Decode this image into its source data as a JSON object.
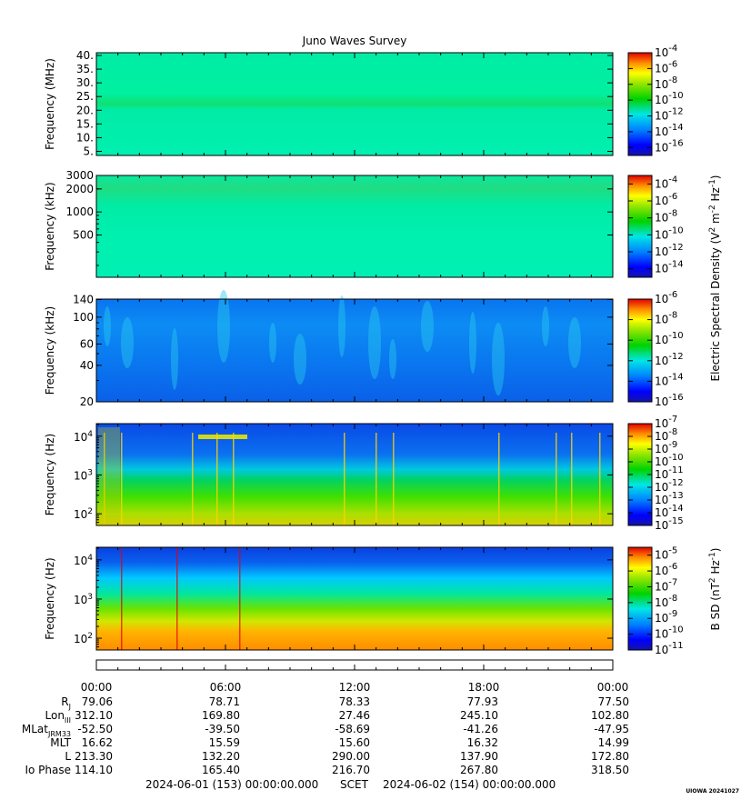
{
  "chart_data": {
    "type": "heatmap",
    "title": "Juno Waves Survey",
    "panels": [
      {
        "id": "p1",
        "ylabel": "Frequency (MHz)",
        "yscale": "linear",
        "ylim": [
          3.5,
          41
        ],
        "yticks": [
          {
            "v": 5,
            "t": "5."
          },
          {
            "v": 10,
            "t": "10."
          },
          {
            "v": 15,
            "t": "15."
          },
          {
            "v": 20,
            "t": "20."
          },
          {
            "v": 25,
            "t": "25."
          },
          {
            "v": 30,
            "t": "30."
          },
          {
            "v": 35,
            "t": "35."
          },
          {
            "v": 40,
            "t": "40."
          }
        ],
        "colorbar": {
          "range": [
            -17,
            -4
          ],
          "ticks": [
            {
              "b": "10",
              "e": "-4",
              "v": -4
            },
            {
              "b": "10",
              "e": "-6",
              "v": -6
            },
            {
              "b": "10",
              "e": "-8",
              "v": -8
            },
            {
              "b": "10",
              "e": "-10",
              "v": -10
            },
            {
              "b": "10",
              "e": "-12",
              "v": -12
            },
            {
              "b": "10",
              "e": "-14",
              "v": -14
            },
            {
              "b": "10",
              "e": "-16",
              "v": -16
            }
          ]
        }
      },
      {
        "id": "p2",
        "ylabel": "Frequency (kHz)",
        "yscale": "log",
        "ylim": [
          140,
          3000
        ],
        "yticks": [
          {
            "v": 3000,
            "t": "3000"
          },
          {
            "v": 2000,
            "t": "2000"
          },
          {
            "v": 1000,
            "t": "1000"
          },
          {
            "v": 500,
            "t": "500"
          }
        ],
        "colorbar": {
          "range": [
            -15,
            -3
          ],
          "ticks": [
            {
              "b": "10",
              "e": "-4",
              "v": -4
            },
            {
              "b": "10",
              "e": "-6",
              "v": -6
            },
            {
              "b": "10",
              "e": "-8",
              "v": -8
            },
            {
              "b": "10",
              "e": "-10",
              "v": -10
            },
            {
              "b": "10",
              "e": "-12",
              "v": -12
            },
            {
              "b": "10",
              "e": "-14",
              "v": -14
            }
          ]
        }
      },
      {
        "id": "p3",
        "ylabel": "Frequency (kHz)",
        "yscale": "log",
        "ylim": [
          20,
          141
        ],
        "yticks": [
          {
            "v": 140,
            "t": "140"
          },
          {
            "v": 100,
            "t": "100"
          },
          {
            "v": 60,
            "t": "60"
          },
          {
            "v": 40,
            "t": "40"
          },
          {
            "v": 20,
            "t": "20"
          }
        ],
        "colorbar": {
          "range": [
            -16,
            -6
          ],
          "ticks": [
            {
              "b": "10",
              "e": "-6",
              "v": -6
            },
            {
              "b": "10",
              "e": "-8",
              "v": -8
            },
            {
              "b": "10",
              "e": "-10",
              "v": -10
            },
            {
              "b": "10",
              "e": "-12",
              "v": -12
            },
            {
              "b": "10",
              "e": "-14",
              "v": -14
            },
            {
              "b": "10",
              "e": "-16",
              "v": -16
            }
          ]
        }
      },
      {
        "id": "p4",
        "ylabel": "Frequency (Hz)",
        "yscale": "log",
        "ylim": [
          50,
          21000
        ],
        "yticks": [
          {
            "v": 10000,
            "b": "10",
            "e": "4"
          },
          {
            "v": 1000,
            "b": "10",
            "e": "3"
          },
          {
            "v": 100,
            "b": "10",
            "e": "2"
          }
        ],
        "colorbar": {
          "range": [
            -15,
            -7
          ],
          "ticks": [
            {
              "b": "10",
              "e": "-7",
              "v": -7
            },
            {
              "b": "10",
              "e": "-8",
              "v": -8
            },
            {
              "b": "10",
              "e": "-9",
              "v": -9
            },
            {
              "b": "10",
              "e": "-10",
              "v": -10
            },
            {
              "b": "10",
              "e": "-11",
              "v": -11
            },
            {
              "b": "10",
              "e": "-12",
              "v": -12
            },
            {
              "b": "10",
              "e": "-13",
              "v": -13
            },
            {
              "b": "10",
              "e": "-14",
              "v": -14
            },
            {
              "b": "10",
              "e": "-15",
              "v": -15
            }
          ]
        }
      },
      {
        "id": "p5",
        "ylabel": "Frequency (Hz)",
        "yscale": "log",
        "ylim": [
          50,
          21000
        ],
        "yticks": [
          {
            "v": 10000,
            "b": "10",
            "e": "4"
          },
          {
            "v": 1000,
            "b": "10",
            "e": "3"
          },
          {
            "v": 100,
            "b": "10",
            "e": "2"
          }
        ],
        "colorbar": {
          "range": [
            -11,
            -4.5
          ],
          "ticks": [
            {
              "b": "10",
              "e": "-5",
              "v": -5
            },
            {
              "b": "10",
              "e": "-6",
              "v": -6
            },
            {
              "b": "10",
              "e": "-7",
              "v": -7
            },
            {
              "b": "10",
              "e": "-8",
              "v": -8
            },
            {
              "b": "10",
              "e": "-9",
              "v": -9
            },
            {
              "b": "10",
              "e": "-10",
              "v": -10
            },
            {
              "b": "10",
              "e": "-11",
              "v": -11
            }
          ]
        }
      }
    ],
    "colorbar_labels": {
      "electric": "Electric Spectral Density (V",
      "electric_parts": [
        {
          "t": "Electric Spectral Density (V",
          "sup": false
        },
        {
          "t": "2",
          "sup": true
        },
        {
          "t": " m",
          "sup": false
        },
        {
          "t": "-2",
          "sup": true
        },
        {
          "t": " Hz",
          "sup": false
        },
        {
          "t": "-1",
          "sup": true
        },
        {
          "t": ")",
          "sup": false
        }
      ],
      "magnetic_parts": [
        {
          "t": "B SD (nT",
          "sup": false
        },
        {
          "t": "2",
          "sup": true
        },
        {
          "t": " Hz",
          "sup": false
        },
        {
          "t": "-1",
          "sup": true
        },
        {
          "t": ")",
          "sup": false
        }
      ]
    },
    "x_ticks": [
      "00:00",
      "06:00",
      "12:00",
      "18:00",
      "00:00"
    ],
    "ephemeris": [
      {
        "name": "R",
        "sub": "J",
        "values": [
          "79.06",
          "78.71",
          "78.33",
          "77.93",
          "77.50"
        ]
      },
      {
        "name": "Lon",
        "sub": "III",
        "values": [
          "312.10",
          "169.80",
          "27.46",
          "245.10",
          "102.80"
        ]
      },
      {
        "name": "MLat",
        "sub": "JRM33",
        "values": [
          "-52.50",
          "-39.50",
          "-58.69",
          "-41.26",
          "-47.95"
        ]
      },
      {
        "name": "MLT",
        "sub": "",
        "values": [
          "16.62",
          "15.59",
          "15.60",
          "16.32",
          "14.99"
        ]
      },
      {
        "name": "L",
        "sub": "",
        "values": [
          "213.30",
          "132.20",
          "290.00",
          "137.90",
          "172.80"
        ]
      },
      {
        "name": "Io Phase",
        "sub": "",
        "values": [
          "114.10",
          "165.40",
          "216.70",
          "267.80",
          "318.50"
        ]
      }
    ],
    "footer": {
      "start": "2024-06-01 (153) 00:00:00.000",
      "scet": "SCET",
      "end": "2024-06-02 (154) 00:00:00.000"
    },
    "credit": "UIOWA 20241027"
  }
}
